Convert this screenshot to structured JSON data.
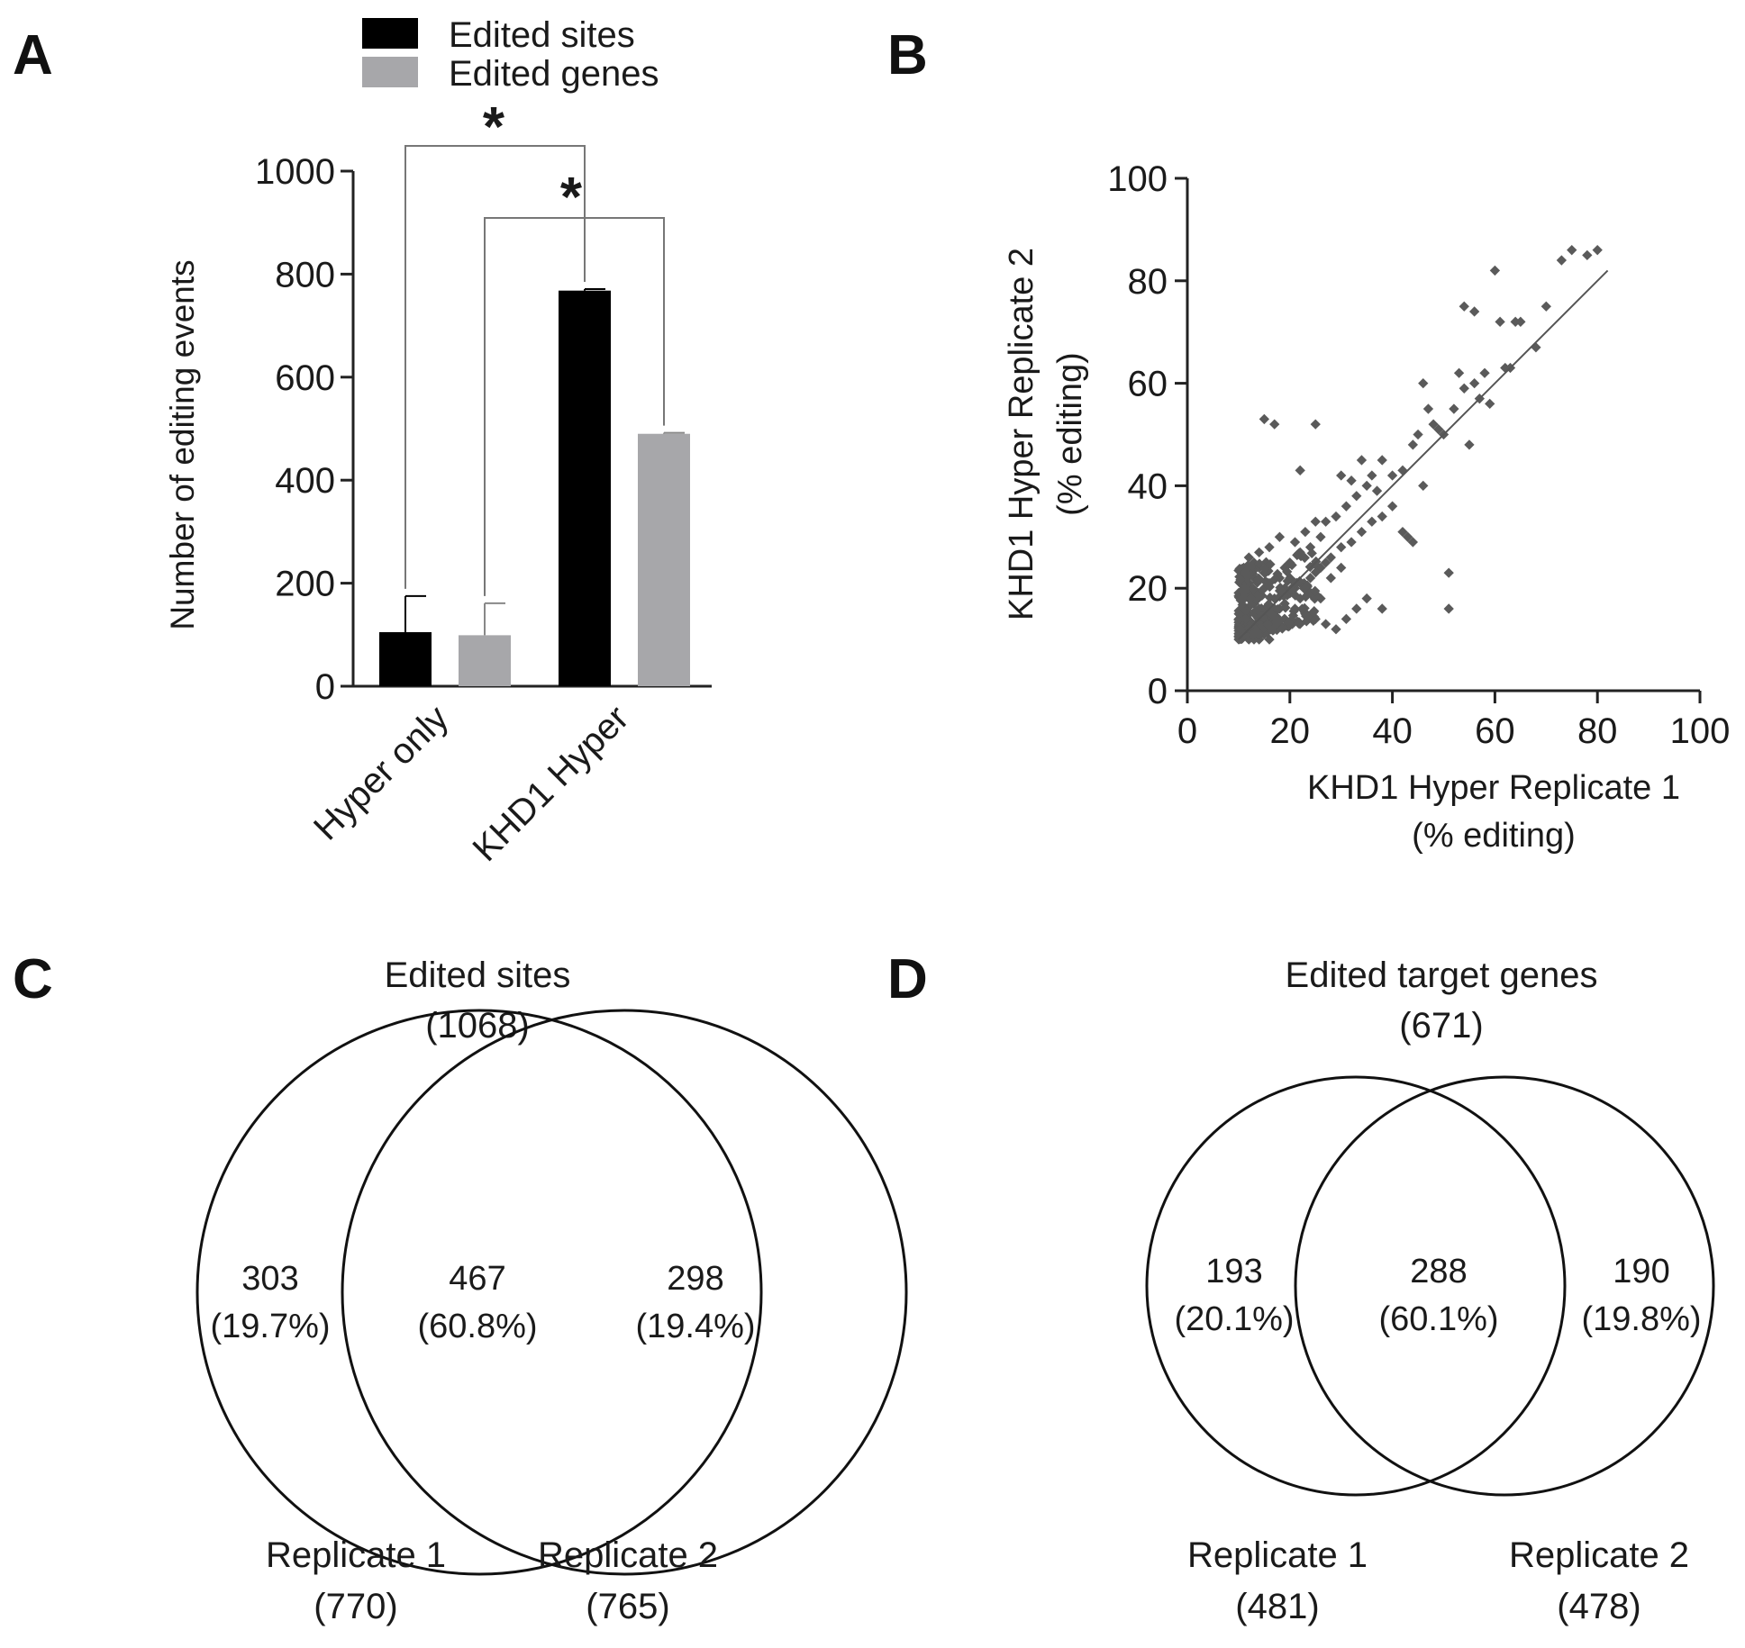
{
  "panels": {
    "a": "A",
    "b": "B",
    "c": "C",
    "d": "D"
  },
  "colors": {
    "sites": "#000000",
    "genes": "#a7a7aa",
    "scatter": "#5a5a5a",
    "axis": "#222222"
  },
  "chart_data": [
    {
      "type": "bar",
      "panel": "A",
      "title": "",
      "ylabel": "Number of editing events",
      "xlabel": "",
      "ylim": [
        0,
        1000
      ],
      "yticks": [
        0,
        200,
        400,
        600,
        800,
        1000
      ],
      "categories": [
        "Hyper only",
        "KHD1 Hyper"
      ],
      "series": [
        {
          "name": "Edited sites",
          "values": [
            105,
            768
          ],
          "errors": [
            70,
            3
          ]
        },
        {
          "name": "Edited genes",
          "values": [
            99,
            490
          ],
          "errors": [
            62,
            2
          ]
        }
      ],
      "significance": [
        "*",
        "*"
      ],
      "legend": "top"
    },
    {
      "type": "scatter",
      "panel": "B",
      "xlabel": "KHD1 Hyper Replicate 1",
      "xlabel2": "(% editing)",
      "ylabel": "KHD1 Hyper Replicate 2",
      "ylabel2": "(% editing)",
      "xlim": [
        0,
        100
      ],
      "ylim": [
        0,
        100
      ],
      "xticks": [
        0,
        20,
        40,
        60,
        80,
        100
      ],
      "yticks": [
        0,
        20,
        40,
        60,
        80,
        100
      ],
      "points": [
        [
          15,
          53
        ],
        [
          17,
          52
        ],
        [
          25,
          52
        ],
        [
          22,
          43
        ],
        [
          30,
          42
        ],
        [
          32,
          41
        ],
        [
          34,
          45
        ],
        [
          36,
          42
        ],
        [
          38,
          45
        ],
        [
          40,
          42
        ],
        [
          42,
          43
        ],
        [
          44,
          48
        ],
        [
          45,
          50
        ],
        [
          46,
          60
        ],
        [
          47,
          55
        ],
        [
          48,
          52
        ],
        [
          49,
          51
        ],
        [
          50,
          50
        ],
        [
          52,
          55
        ],
        [
          53,
          62
        ],
        [
          54,
          59
        ],
        [
          55,
          48
        ],
        [
          56,
          60
        ],
        [
          57,
          57
        ],
        [
          58,
          62
        ],
        [
          59,
          56
        ],
        [
          60,
          82
        ],
        [
          61,
          72
        ],
        [
          62,
          63
        ],
        [
          63,
          63
        ],
        [
          54,
          75
        ],
        [
          56,
          74
        ],
        [
          64,
          72
        ],
        [
          65,
          72
        ],
        [
          68,
          67
        ],
        [
          70,
          75
        ],
        [
          73,
          84
        ],
        [
          75,
          86
        ],
        [
          78,
          85
        ],
        [
          80,
          86
        ],
        [
          38,
          16
        ],
        [
          51,
          16
        ],
        [
          51,
          23
        ],
        [
          43,
          30
        ],
        [
          44,
          29
        ],
        [
          42,
          31
        ],
        [
          40,
          36
        ],
        [
          46,
          40
        ],
        [
          26,
          30
        ],
        [
          27,
          33
        ],
        [
          29,
          34
        ],
        [
          31,
          36
        ],
        [
          33,
          38
        ],
        [
          35,
          40
        ],
        [
          37,
          39
        ],
        [
          24,
          28
        ],
        [
          22,
          27
        ],
        [
          20,
          25
        ],
        [
          19,
          24
        ],
        [
          18,
          22
        ],
        [
          21,
          29
        ],
        [
          23,
          31
        ],
        [
          25,
          33
        ],
        [
          18,
          30
        ],
        [
          16,
          28
        ],
        [
          14,
          27
        ],
        [
          12,
          26
        ],
        [
          11,
          24
        ],
        [
          13,
          22
        ],
        [
          15,
          20
        ],
        [
          17,
          18
        ],
        [
          19,
          17
        ],
        [
          21,
          16
        ],
        [
          23,
          15
        ],
        [
          25,
          14
        ],
        [
          27,
          13
        ],
        [
          29,
          12
        ],
        [
          31,
          14
        ],
        [
          33,
          16
        ],
        [
          35,
          18
        ],
        [
          12,
          12
        ],
        [
          11,
          13
        ],
        [
          13,
          11
        ],
        [
          14,
          14
        ],
        [
          15,
          13
        ],
        [
          16,
          12
        ],
        [
          12,
          15
        ],
        [
          11,
          16
        ],
        [
          13,
          17
        ],
        [
          14,
          16
        ],
        [
          16,
          15
        ],
        [
          17,
          14
        ],
        [
          18,
          13
        ],
        [
          15,
          11
        ],
        [
          11,
          11
        ],
        [
          12,
          18
        ],
        [
          13,
          19
        ],
        [
          14,
          19
        ],
        [
          17,
          16
        ],
        [
          18,
          16
        ],
        [
          20,
          19
        ],
        [
          21,
          20
        ],
        [
          22,
          21
        ],
        [
          19,
          20
        ],
        [
          20,
          22
        ],
        [
          24,
          22
        ],
        [
          26,
          24
        ],
        [
          27,
          25
        ],
        [
          28,
          26
        ],
        [
          30,
          28
        ],
        [
          32,
          29
        ],
        [
          34,
          31
        ],
        [
          36,
          33
        ],
        [
          38,
          34
        ],
        [
          28,
          22
        ],
        [
          30,
          24
        ],
        [
          26,
          18
        ],
        [
          24,
          19
        ],
        [
          22,
          18
        ],
        [
          16,
          21
        ],
        [
          15,
          23
        ],
        [
          14,
          24
        ],
        [
          13,
          25
        ],
        [
          12,
          21
        ],
        [
          11,
          19
        ],
        [
          11,
          22
        ],
        [
          12,
          10
        ],
        [
          13,
          10
        ],
        [
          14,
          10
        ],
        [
          16,
          10
        ]
      ],
      "fit": {
        "slope": 1.0,
        "intercept": 0,
        "x_range": [
          10,
          82
        ]
      }
    },
    {
      "type": "venn",
      "panel": "C",
      "title": "Edited sites",
      "total": "(1068)",
      "regions": [
        {
          "label": "303",
          "pct": "(19.7%)"
        },
        {
          "label": "467",
          "pct": "(60.8%)"
        },
        {
          "label": "298",
          "pct": "(19.4%)"
        }
      ],
      "sets": [
        {
          "name": "Replicate 1",
          "count": "(770)"
        },
        {
          "name": "Replicate 2",
          "count": "(765)"
        }
      ]
    },
    {
      "type": "venn",
      "panel": "D",
      "title": "Edited target genes",
      "total": "(671)",
      "regions": [
        {
          "label": "193",
          "pct": "(20.1%)"
        },
        {
          "label": "288",
          "pct": "(60.1%)"
        },
        {
          "label": "190",
          "pct": "(19.8%)"
        }
      ],
      "sets": [
        {
          "name": "Replicate 1",
          "count": "(481)"
        },
        {
          "name": "Replicate 2",
          "count": "(478)"
        }
      ]
    }
  ]
}
